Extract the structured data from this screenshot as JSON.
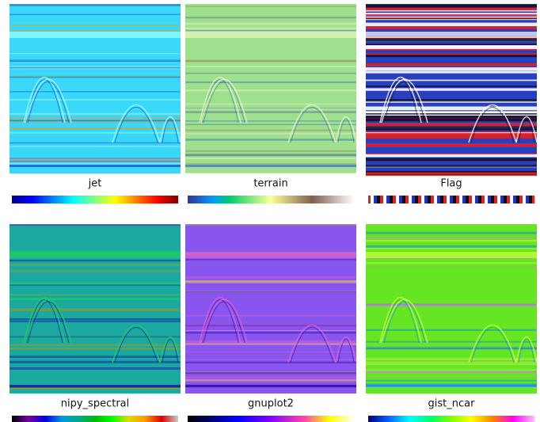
{
  "panels": [
    {
      "label": "jet"
    },
    {
      "label": "terrain"
    },
    {
      "label": "Flag"
    },
    {
      "label": "nipy_spectral"
    },
    {
      "label": "gnuplot2"
    },
    {
      "label": "gist_ncar"
    }
  ]
}
